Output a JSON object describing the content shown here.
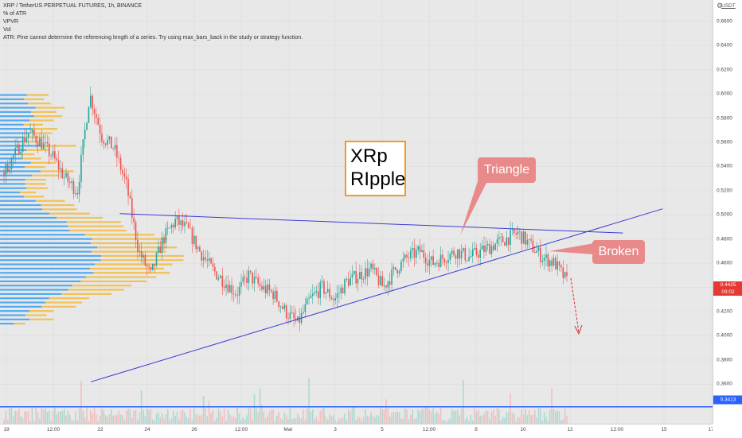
{
  "legend": {
    "title": "XRP / TetherUS PERPETUAL FUTURES, 1h, BINANCE",
    "indicators": [
      "% of ATR",
      "VPVR",
      "Vol"
    ],
    "error": "ATR: Pine cannot determine the referencing length of a series. Try using max_bars_back in the study or strategy function."
  },
  "price_axis": {
    "unit": "USDT",
    "ticks": [
      "0.6600",
      "0.6400",
      "0.6200",
      "0.6000",
      "0.5800",
      "0.5600",
      "0.5400",
      "0.5200",
      "0.5000",
      "0.4800",
      "0.4600",
      "0.4200",
      "0.4000",
      "0.3800",
      "0.3600"
    ],
    "last_price": "0.4425",
    "countdown": "03:02",
    "level_tag": "0.3413",
    "colors": {
      "last": "#e53935",
      "level": "#2962ff"
    }
  },
  "time_axis": {
    "ticks": [
      "19",
      "12:00",
      "22",
      "24",
      "26",
      "12:00",
      "Mar",
      "3",
      "5",
      "12:00",
      "8",
      "10",
      "12",
      "12:00",
      "15",
      "17"
    ]
  },
  "annotations": {
    "box_line1": "XRp",
    "box_line2": "RIpple",
    "triangle_label": "Triangle",
    "broken_label": "Broken"
  },
  "chart_data": {
    "type": "candlestick",
    "title": "XRP / TetherUS PERPETUAL FUTURES, 1h, BINANCE",
    "ylim": [
      0.33,
      0.675
    ],
    "y_ticks": [
      0.36,
      0.38,
      0.4,
      0.42,
      0.44,
      0.46,
      0.48,
      0.5,
      0.52,
      0.54,
      0.56,
      0.58,
      0.6,
      0.62,
      0.64,
      0.66
    ],
    "last_price": 0.4425,
    "horizontal_level": 0.3413,
    "price_path": [
      0.535,
      0.552,
      0.568,
      0.56,
      0.548,
      0.53,
      0.52,
      0.6,
      0.565,
      0.555,
      0.525,
      0.47,
      0.45,
      0.48,
      0.495,
      0.488,
      0.47,
      0.455,
      0.445,
      0.435,
      0.45,
      0.44,
      0.435,
      0.42,
      0.41,
      0.43,
      0.44,
      0.43,
      0.445,
      0.45,
      0.455,
      0.44,
      0.455,
      0.465,
      0.47,
      0.46,
      0.465,
      0.47,
      0.465,
      0.47,
      0.475,
      0.48,
      0.485,
      0.475,
      0.465,
      0.46,
      0.445
    ],
    "trendlines": [
      {
        "name": "upper",
        "from": [
          0.145,
          0.501
        ],
        "to": [
          0.94,
          0.485
        ]
      },
      {
        "name": "lower",
        "from": [
          0.11,
          0.362
        ],
        "to": [
          1.0,
          0.505
        ]
      }
    ],
    "colors": {
      "up": "#26a69a",
      "down": "#ef5350",
      "trend": "#3b3bd6",
      "vp_up": "#2196f3",
      "vp_down": "#f5b731"
    }
  }
}
